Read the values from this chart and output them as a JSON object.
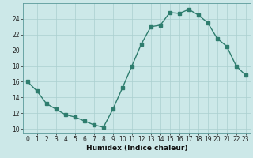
{
  "x": [
    0,
    1,
    2,
    3,
    4,
    5,
    6,
    7,
    8,
    9,
    10,
    11,
    12,
    13,
    14,
    15,
    16,
    17,
    18,
    19,
    20,
    21,
    22,
    23
  ],
  "y": [
    16.0,
    14.8,
    13.2,
    12.5,
    11.8,
    11.5,
    11.0,
    10.5,
    10.2,
    12.5,
    15.2,
    18.0,
    20.8,
    23.0,
    23.2,
    24.8,
    24.7,
    25.2,
    24.5,
    23.5,
    21.5,
    20.5,
    18.0,
    16.8
  ],
  "line_color": "#2e7d6e",
  "marker": "s",
  "marker_size": 2.5,
  "line_width": 1.0,
  "bg_color": "#cce8e8",
  "grid_color": "#aacfcf",
  "xlabel": "Humidex (Indice chaleur)",
  "xlabel_fontsize": 6.5,
  "tick_fontsize": 5.5,
  "xlim": [
    -0.5,
    23.5
  ],
  "ylim": [
    9.5,
    26.0
  ],
  "yticks": [
    10,
    12,
    14,
    16,
    18,
    20,
    22,
    24
  ],
  "xticks": [
    0,
    1,
    2,
    3,
    4,
    5,
    6,
    7,
    8,
    9,
    10,
    11,
    12,
    13,
    14,
    15,
    16,
    17,
    18,
    19,
    20,
    21,
    22,
    23
  ],
  "spine_color": "#5a9a9a"
}
